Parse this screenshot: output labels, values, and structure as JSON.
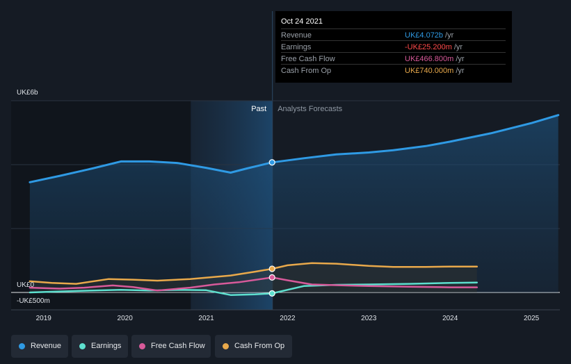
{
  "tooltip": {
    "date": "Oct 24 2021",
    "rows": [
      {
        "label": "Revenue",
        "value": "UK£4.072b",
        "unit": "/yr",
        "color": "#2f9ae4"
      },
      {
        "label": "Earnings",
        "value": "-UK£25.200m",
        "unit": "/yr",
        "color": "#ff4a4a"
      },
      {
        "label": "Free Cash Flow",
        "value": "UK£466.800m",
        "unit": "/yr",
        "color": "#d85a9a"
      },
      {
        "label": "Cash From Op",
        "value": "UK£740.000m",
        "unit": "/yr",
        "color": "#e9a94b"
      }
    ]
  },
  "legend": [
    {
      "label": "Revenue",
      "color": "#2f9ae4"
    },
    {
      "label": "Earnings",
      "color": "#5ee0cf"
    },
    {
      "label": "Free Cash Flow",
      "color": "#d85a9a"
    },
    {
      "label": "Cash From Op",
      "color": "#e9a94b"
    }
  ],
  "chart_data": {
    "type": "line",
    "title": "",
    "xlabel": "",
    "ylabel": "",
    "y_unit": "UK£ b",
    "ylim": [
      -0.5,
      6
    ],
    "xlim": [
      2018.6,
      2025.35
    ],
    "y_tick_labels": [
      {
        "value": 6,
        "label": "UK£6b"
      },
      {
        "value": 0,
        "label": "UK£0"
      },
      {
        "value": -0.5,
        "label": "-UK£500m"
      }
    ],
    "x_ticks": [
      2019,
      2020,
      2021,
      2022,
      2023,
      2024,
      2025
    ],
    "x_tick_labels": [
      "2019",
      "2020",
      "2021",
      "2022",
      "2023",
      "2024",
      "2025"
    ],
    "divider_x": 2021.81,
    "past_label": "Past",
    "forecast_label": "Analysts Forecasts",
    "past_shade_start": 2020.81,
    "series": [
      {
        "name": "Revenue",
        "color": "#2f9ae4",
        "x": [
          2018.83,
          2019.2,
          2019.6,
          2019.95,
          2020.3,
          2020.65,
          2021.0,
          2021.3,
          2021.5,
          2021.81,
          2022.2,
          2022.6,
          2023.0,
          2023.3,
          2023.7,
          2024.0,
          2024.5,
          2025.0,
          2025.33
        ],
        "y": [
          3.45,
          3.65,
          3.88,
          4.1,
          4.1,
          4.05,
          3.9,
          3.75,
          3.88,
          4.07,
          4.2,
          4.32,
          4.38,
          4.45,
          4.58,
          4.72,
          4.98,
          5.3,
          5.55
        ]
      },
      {
        "name": "Earnings",
        "color": "#5ee0cf",
        "x": [
          2018.83,
          2019.2,
          2019.6,
          2019.95,
          2020.3,
          2020.65,
          2021.0,
          2021.3,
          2021.6,
          2021.81,
          2022.2,
          2022.6,
          2023.0,
          2023.5,
          2024.0,
          2024.33
        ],
        "y": [
          0.0,
          0.03,
          0.06,
          0.08,
          0.06,
          0.08,
          0.07,
          -0.08,
          -0.06,
          -0.03,
          0.2,
          0.24,
          0.25,
          0.27,
          0.3,
          0.31
        ]
      },
      {
        "name": "Free Cash Flow",
        "color": "#d85a9a",
        "x": [
          2018.83,
          2019.2,
          2019.5,
          2019.85,
          2020.1,
          2020.4,
          2020.8,
          2021.1,
          2021.4,
          2021.81,
          2022.0,
          2022.3,
          2022.7,
          2023.0,
          2023.5,
          2024.0,
          2024.33
        ],
        "y": [
          0.15,
          0.12,
          0.15,
          0.22,
          0.17,
          0.06,
          0.15,
          0.25,
          0.32,
          0.47,
          0.38,
          0.25,
          0.22,
          0.2,
          0.18,
          0.16,
          0.16
        ]
      },
      {
        "name": "Cash From Op",
        "color": "#e9a94b",
        "x": [
          2018.83,
          2019.1,
          2019.4,
          2019.8,
          2020.1,
          2020.4,
          2020.8,
          2021.3,
          2021.6,
          2021.81,
          2022.0,
          2022.3,
          2022.6,
          2023.0,
          2023.3,
          2023.7,
          2024.0,
          2024.33
        ],
        "y": [
          0.35,
          0.3,
          0.27,
          0.42,
          0.4,
          0.37,
          0.42,
          0.53,
          0.65,
          0.74,
          0.85,
          0.92,
          0.9,
          0.83,
          0.8,
          0.8,
          0.81,
          0.81
        ]
      }
    ]
  }
}
